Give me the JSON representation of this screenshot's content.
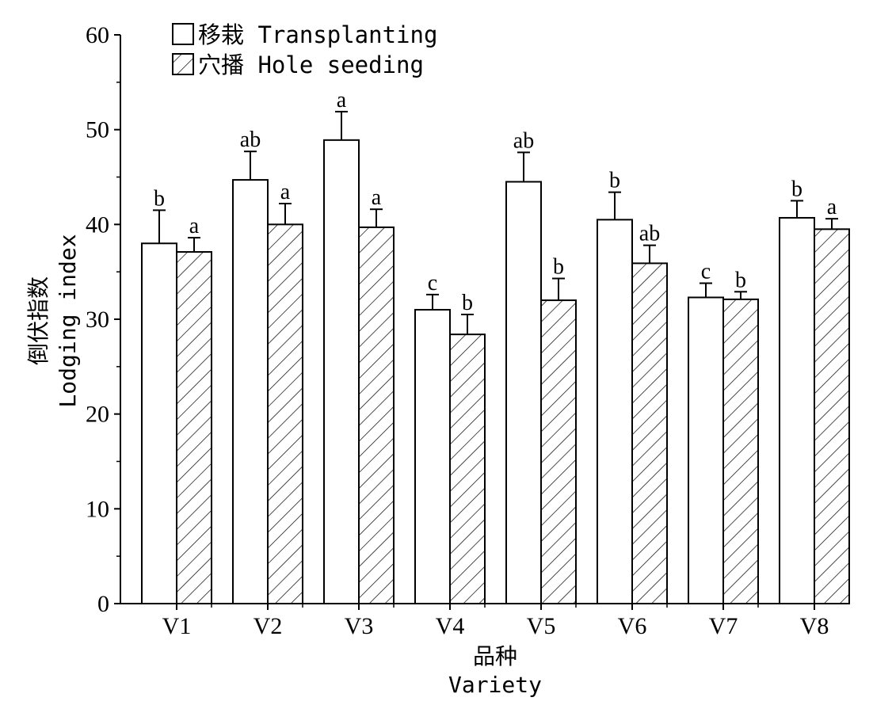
{
  "chart_data": {
    "type": "bar",
    "xlabel": "品种",
    "xlabel_en": "Variety",
    "ylabel": "倒伏指数",
    "ylabel_en": "Lodging index",
    "ylim": [
      0,
      60
    ],
    "yticks": [
      0,
      10,
      20,
      30,
      40,
      50,
      60
    ],
    "grid": false,
    "legend_position": "top-left",
    "categories": [
      "V1",
      "V2",
      "V3",
      "V4",
      "V5",
      "V6",
      "V7",
      "V8"
    ],
    "series": [
      {
        "name": "移栽 Transplanting",
        "fill": "#ffffff",
        "pattern": "none",
        "values": [
          38.0,
          44.7,
          48.9,
          31.0,
          44.5,
          40.5,
          32.3,
          40.7
        ],
        "errors": [
          3.5,
          3.0,
          3.0,
          1.6,
          3.1,
          2.9,
          1.5,
          1.8
        ],
        "labels": [
          "b",
          "ab",
          "a",
          "c",
          "ab",
          "b",
          "c",
          "b"
        ]
      },
      {
        "name": "穴播 Hole seeding",
        "fill": "#ffffff",
        "pattern": "diagonal-hatch",
        "values": [
          37.1,
          40.0,
          39.7,
          28.4,
          32.0,
          35.9,
          32.1,
          39.5
        ],
        "errors": [
          1.5,
          2.2,
          1.9,
          2.1,
          2.3,
          1.9,
          0.8,
          1.1
        ],
        "labels": [
          "a",
          "a",
          "a",
          "b",
          "b",
          "ab",
          "b",
          "a"
        ]
      }
    ]
  }
}
